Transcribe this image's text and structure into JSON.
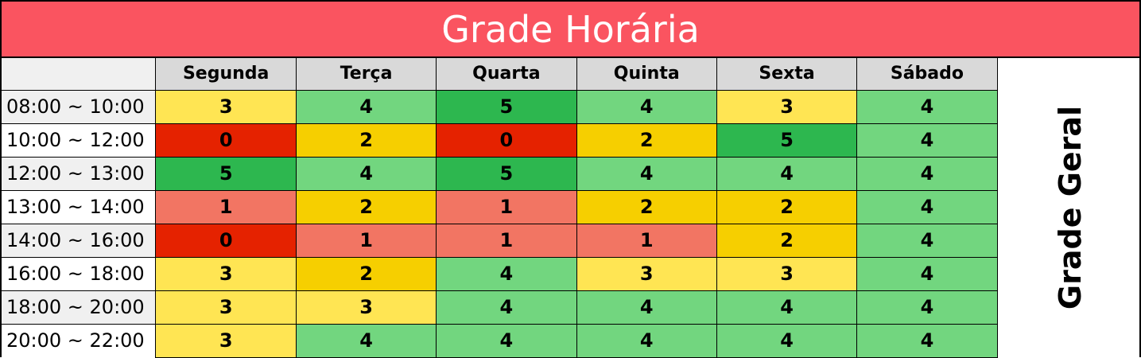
{
  "sheet": {
    "title": "Grade Horária",
    "side_label": "Grade Geral"
  },
  "days": [
    "Segunda",
    "Terça",
    "Quarta",
    "Quinta",
    "Sexta",
    "Sábado"
  ],
  "times": [
    "08:00 ~ 10:00",
    "10:00 ~ 12:00",
    "12:00 ~ 13:00",
    "13:00 ~ 14:00",
    "14:00 ~ 16:00",
    "16:00 ~ 18:00",
    "18:00 ~ 20:00",
    "20:00 ~ 22:00"
  ],
  "values": [
    [
      3,
      4,
      5,
      4,
      3,
      4
    ],
    [
      0,
      2,
      0,
      2,
      5,
      4
    ],
    [
      5,
      4,
      5,
      4,
      4,
      4
    ],
    [
      1,
      2,
      1,
      2,
      2,
      4
    ],
    [
      0,
      1,
      1,
      1,
      2,
      4
    ],
    [
      3,
      2,
      4,
      3,
      3,
      4
    ],
    [
      3,
      3,
      4,
      4,
      4,
      4
    ],
    [
      3,
      4,
      4,
      4,
      4,
      4
    ]
  ],
  "colors": {
    "title_bg": "#fa5460",
    "value_scale": {
      "0": "#e52200",
      "1": "#f27563",
      "2": "#f6cf00",
      "3": "#ffe553",
      "4": "#72d67f",
      "5": "#2db74f"
    }
  }
}
